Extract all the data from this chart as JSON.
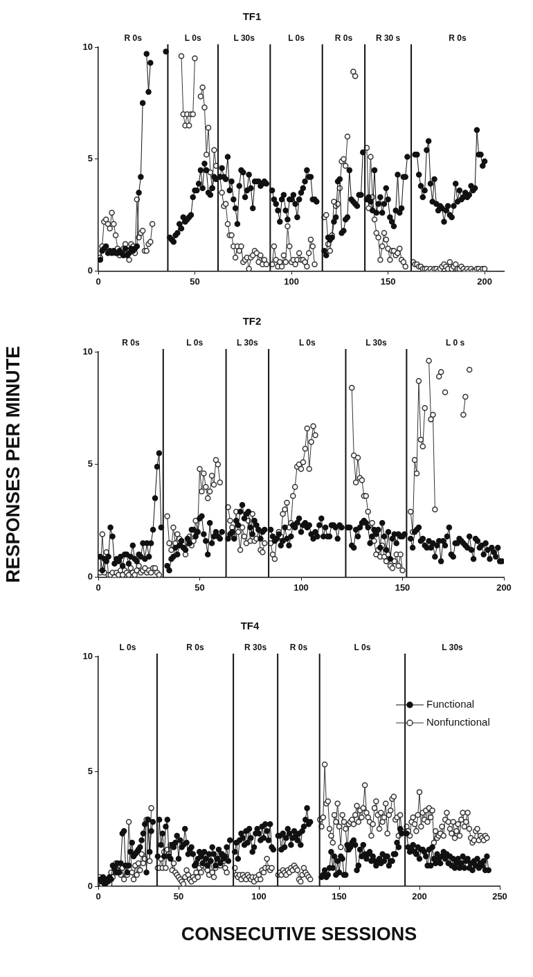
{
  "chart_data": [
    {
      "type": "line",
      "title": "TF1",
      "xlim": [
        0,
        210
      ],
      "xticks": [
        0,
        50,
        100,
        150,
        200
      ],
      "ylim": [
        0,
        10
      ],
      "yticks": [
        0,
        5,
        10
      ],
      "grid": false,
      "legend": false,
      "marker": "circle",
      "x": [
        1,
        2,
        3,
        4,
        5,
        6,
        7,
        8,
        9,
        10,
        11,
        12,
        13,
        14,
        15,
        16,
        17,
        18,
        19,
        20,
        21,
        22,
        23,
        24,
        25,
        26,
        27,
        28,
        29,
        30,
        31,
        32,
        33,
        34,
        35,
        36,
        37,
        38,
        39,
        40,
        41,
        42,
        43,
        44,
        45,
        46,
        47,
        48,
        49,
        50,
        51,
        52,
        53,
        54,
        55,
        56,
        57,
        58,
        59,
        60,
        61,
        62,
        63,
        64,
        65,
        66,
        67,
        68,
        69,
        70,
        71,
        72,
        73,
        74,
        75,
        76,
        77,
        78,
        79,
        80,
        81,
        82,
        83,
        84,
        85,
        86,
        87,
        88,
        89,
        90,
        91,
        92,
        93,
        94,
        95,
        96,
        97,
        98,
        99,
        100,
        101,
        102,
        103,
        104,
        105,
        106,
        107,
        108,
        109,
        110,
        111,
        112,
        113,
        114,
        115,
        116,
        117,
        118,
        119,
        120,
        121,
        122,
        123,
        124,
        125,
        126,
        127,
        128,
        129,
        130,
        131,
        132,
        133,
        134,
        135,
        136,
        137,
        138,
        139,
        140,
        141,
        142,
        143,
        144,
        145,
        146,
        147,
        148,
        149,
        150,
        151,
        152,
        153,
        154,
        155,
        156,
        157,
        158,
        159,
        160,
        161,
        162,
        163,
        164,
        165,
        166,
        167,
        168,
        169,
        170,
        171,
        172,
        173,
        174,
        175,
        176,
        177,
        178,
        179,
        180,
        181,
        182,
        183,
        184,
        185,
        186,
        187,
        188,
        189,
        190,
        191,
        192,
        193,
        194,
        195,
        196,
        197,
        198,
        199,
        200
      ],
      "annotations": [
        "R 0s",
        "L 0s",
        "L 30s",
        "L 0s",
        "R 0s",
        "R 30 s",
        "R 0s"
      ],
      "ref_lines": [
        {
          "axis": "x",
          "value": 36
        },
        {
          "axis": "x",
          "value": 62
        },
        {
          "axis": "x",
          "value": 89
        },
        {
          "axis": "x",
          "value": 116
        },
        {
          "axis": "x",
          "value": 138
        },
        {
          "axis": "x",
          "value": 162
        }
      ],
      "series": [
        {
          "color": "#111111",
          "values": [
            0.5,
            0.9,
            1.0,
            1.1,
            0.8,
            0.9,
            0.8,
            0.9,
            0.8,
            0.8,
            0.9,
            0.8,
            0.7,
            1.0,
            0.7,
            0.8,
            1.0,
            0.9,
            1.0,
            1.1,
            3.5,
            4.2,
            7.5,
            null,
            9.7,
            8.0,
            9.3,
            null,
            null,
            null,
            null,
            null,
            null,
            null,
            9.8,
            null,
            1.5,
            1.4,
            1.3,
            1.6,
            1.7,
            2.1,
            1.9,
            2.4,
            2.2,
            2.3,
            2.4,
            2.5,
            3.3,
            3.6,
            3.6,
            3.9,
            4.5,
            3.7,
            4.8,
            4.5,
            3.5,
            3.4,
            3.7,
            4.2,
            4.1,
            null,
            4.2,
            4.6,
            4.2,
            4.1,
            5.1,
            3.6,
            4.0,
            3.2,
            2.8,
            2.1,
            3.8,
            4.5,
            4.4,
            3.3,
            3.6,
            4.3,
            3.7,
            2.8,
            4.0,
            4.0,
            4.0,
            3.8,
            3.9,
            4.0,
            3.9,
            null,
            null,
            3.6,
            3.2,
            3.0,
            2.7,
            2.2,
            3.2,
            3.4,
            2.7,
            2.3,
            3.2,
            3.2,
            3.4,
            3.0,
            2.4,
            3.2,
            3.5,
            3.7,
            4.0,
            4.5,
            4.2,
            4.2,
            3.2,
            3.2,
            3.1,
            null,
            null,
            null,
            0.9,
            0.7,
            1.5,
            1.4,
            1.5,
            2.2,
            2.4,
            4.0,
            4.1,
            1.7,
            1.8,
            2.3,
            2.4,
            4.5,
            3.2,
            3.1,
            3.0,
            2.9,
            3.4,
            3.4,
            5.3,
            null,
            3.2,
            3.3,
            3.1,
            2.7,
            4.5,
            2.6,
            3.0,
            3.3,
            2.6,
            3.0,
            3.7,
            3.2,
            2.4,
            2.2,
            2.0,
            2.7,
            4.3,
            2.6,
            2.8,
            4.2,
            4.2,
            5.1,
            null,
            null,
            null,
            5.2,
            5.2,
            4.3,
            3.8,
            3.3,
            3.6,
            5.4,
            5.8,
            3.9,
            3.1,
            4.1,
            3.0,
            2.7,
            2.9,
            2.8,
            2.2,
            2.7,
            2.9,
            2.5,
            2.4,
            2.9,
            3.9,
            3.1,
            3.6,
            3.2,
            3.3,
            3.5,
            3.3,
            3.4,
            3.8,
            3.6,
            3.7,
            6.3,
            5.2,
            5.2,
            4.7,
            4.9
          ]
        },
        {
          "color": "#333333",
          "values": [
            0.6,
            1.1,
            2.2,
            2.3,
            2.1,
            1.9,
            2.6,
            2.1,
            1.6,
            1.0,
            0.7,
            0.8,
            1.0,
            1.2,
            0.9,
            0.5,
            1.2,
            1.1,
            0.8,
            3.2,
            1.5,
            1.7,
            1.8,
            0.9,
            0.9,
            1.2,
            1.3,
            2.1,
            null,
            null,
            null,
            null,
            null,
            null,
            null,
            null,
            null,
            null,
            null,
            null,
            null,
            null,
            9.6,
            7.0,
            6.5,
            7.0,
            6.5,
            7.0,
            7.0,
            9.5,
            null,
            null,
            7.8,
            8.2,
            7.3,
            5.2,
            6.4,
            4.4,
            3.7,
            5.4,
            4.7,
            null,
            4.2,
            3.5,
            2.9,
            3.0,
            2.1,
            1.6,
            1.6,
            1.1,
            0.6,
            1.1,
            0.9,
            1.1,
            0.4,
            0.5,
            0.6,
            0.1,
            0.6,
            0.7,
            0.9,
            0.8,
            0.4,
            0.7,
            0.3,
            0.5,
            0.3,
            null,
            null,
            0.3,
            1.1,
            0.5,
            0.2,
            0.4,
            0.2,
            0.7,
            0.4,
            2.0,
            1.1,
            0.4,
            0.5,
            0.3,
            0.5,
            0.8,
            0.5,
            0.5,
            0.4,
            0.2,
            0.8,
            1.4,
            1.1,
            0.3,
            null,
            null,
            null,
            null,
            2.4,
            2.5,
            1.2,
            0.9,
            1.6,
            3.1,
            2.9,
            3.0,
            3.7,
            4.9,
            5.0,
            4.7,
            6.0,
            null,
            null,
            8.9,
            8.7,
            null,
            null,
            null,
            null,
            null,
            5.5,
            2.8,
            5.1,
            3.3,
            2.3,
            1.7,
            1.5,
            0.5,
            1.1,
            1.7,
            1.4,
            1.0,
            0.5,
            0.9,
            0.9,
            0.7,
            0.8,
            1.0,
            0.5,
            0.4,
            0.2,
            null,
            null,
            null,
            0.4,
            0.3,
            0.3,
            0.2,
            0.2,
            0.1,
            0.1,
            0.1,
            0,
            0.1,
            0,
            0.1,
            0.1,
            0,
            0.1,
            0.2,
            0.3,
            0.2,
            0.1,
            0.4,
            0.1,
            0.2,
            0.3,
            0.1,
            0.1,
            0.2,
            0.1,
            0,
            0.1,
            0,
            0.1,
            0,
            0,
            0.1,
            0.1,
            0,
            0.1,
            0.1
          ]
        }
      ]
    },
    {
      "type": "line",
      "title": "TF2",
      "ylabel": "RESPONSES PER MINUTE",
      "xlim": [
        0,
        200
      ],
      "xticks": [
        0,
        50,
        100,
        150,
        200
      ],
      "ylim": [
        0,
        10
      ],
      "yticks": [
        0,
        5,
        10
      ],
      "grid": false,
      "legend": false,
      "marker": "circle",
      "x": [
        1,
        2,
        3,
        4,
        5,
        6,
        7,
        8,
        9,
        10,
        11,
        12,
        13,
        14,
        15,
        16,
        17,
        18,
        19,
        20,
        21,
        22,
        23,
        24,
        25,
        26,
        27,
        28,
        29,
        30,
        31,
        32,
        33,
        34,
        35,
        36,
        37,
        38,
        39,
        40,
        41,
        42,
        43,
        44,
        45,
        46,
        47,
        48,
        49,
        50,
        51,
        52,
        53,
        54,
        55,
        56,
        57,
        58,
        59,
        60,
        61,
        62,
        63,
        64,
        65,
        66,
        67,
        68,
        69,
        70,
        71,
        72,
        73,
        74,
        75,
        76,
        77,
        78,
        79,
        80,
        81,
        82,
        83,
        84,
        85,
        86,
        87,
        88,
        89,
        90,
        91,
        92,
        93,
        94,
        95,
        96,
        97,
        98,
        99,
        100,
        101,
        102,
        103,
        104,
        105,
        106,
        107,
        108,
        109,
        110,
        111,
        112,
        113,
        114,
        115,
        116,
        117,
        118,
        119,
        120,
        121,
        122,
        123,
        124,
        125,
        126,
        127,
        128,
        129,
        130,
        131,
        132,
        133,
        134,
        135,
        136,
        137,
        138,
        139,
        140,
        141,
        142,
        143,
        144,
        145,
        146,
        147,
        148,
        149,
        150,
        151,
        152,
        153,
        154,
        155,
        156,
        157,
        158,
        159,
        160,
        161,
        162,
        163,
        164,
        165,
        166,
        167,
        168,
        169,
        170,
        171,
        172,
        173,
        174,
        175,
        176,
        177,
        178,
        179,
        180,
        181,
        182,
        183,
        184,
        185,
        186,
        187,
        188,
        189,
        190,
        191,
        192,
        193,
        194,
        195,
        196,
        197,
        198,
        199
      ],
      "annotations": [
        "R 0s",
        "L 0s",
        "L 30s",
        "L 0s",
        "L 30s",
        "L 0 s"
      ],
      "ref_lines": [
        {
          "axis": "x",
          "value": 32
        },
        {
          "axis": "x",
          "value": 63
        },
        {
          "axis": "x",
          "value": 84
        },
        {
          "axis": "x",
          "value": 122
        },
        {
          "axis": "x",
          "value": 152
        }
      ],
      "series": [
        {
          "color": "#111111",
          "values": [
            0.9,
            0.3,
            0.8,
            0.7,
            0.9,
            2.2,
            1.8,
            0.6,
            0.8,
            0.7,
            0.9,
            0.5,
            1.0,
            1.0,
            0.6,
            0.9,
            1.4,
            0.8,
            0.7,
            1.0,
            0.9,
            1.5,
            0.8,
            1.5,
            0.9,
            1.5,
            2.1,
            3.5,
            4.9,
            5.5,
            2.2,
            null,
            null,
            0.5,
            0.3,
            0.8,
            0.9,
            1.3,
            1.0,
            1.4,
            1.6,
            1.3,
            1.2,
            1.7,
            1.5,
            2.1,
            2.1,
            1.8,
            2.0,
            2.6,
            2.7,
            1.9,
            1.6,
            1.0,
            2.4,
            1.5,
            1.8,
            2.0,
            1.8,
            1.7,
            2.0,
            null,
            null,
            1.7,
            1.9,
            2.0,
            1.7,
            2.5,
            2.3,
            2.9,
            3.2,
            2.6,
            2.8,
            2.9,
            2.2,
            1.9,
            2.5,
            2.3,
            2.1,
            1.7,
            2.0,
            2.1,
            null,
            null,
            2.1,
            1.8,
            1.6,
            1.7,
            1.9,
            1.4,
            1.6,
            2.2,
            1.7,
            1.4,
            1.8,
            2.3,
            2.2,
            2.4,
            2.6,
            2.0,
            2.3,
            2.4,
            2.2,
            2.3,
            1.9,
            1.7,
            2.0,
            1.8,
            2.3,
            2.6,
            1.8,
            2.2,
            1.8,
            1.8,
            2.3,
            2.3,
            2.2,
            1.7,
            2.3,
            2.2,
            null,
            null,
            2.2,
            2.2,
            1.4,
            1.3,
            2.1,
            1.8,
            2.2,
            2.4,
            2.5,
            2.4,
            2.2,
            1.5,
            1.8,
            2.1,
            1.9,
            2.1,
            1.3,
            2.4,
            1.8,
            1.2,
            2.0,
            0.8,
            1.7,
            1.9,
            1.5,
            1.9,
            1.8,
            1.8,
            1.9,
            null,
            null,
            1.7,
            1.3,
            2.0,
            2.1,
            2.2,
            1.6,
            1.7,
            1.4,
            1.3,
            1.6,
            1.3,
            1.5,
            0.9,
            1.4,
            1.6,
            0.7,
            1.6,
            1.4,
            1.8,
            2.2,
            1.0,
            0.9,
            1.5,
            1.5,
            1.7,
            1.6,
            1.5,
            1.4,
            1.3,
            1.8,
            1.2,
            0.8,
            1.7,
            1.6,
            1.3,
            1.4,
            1.0,
            1.5,
            1.2,
            0.8,
            1.3,
            1.1,
            0.9,
            1.3,
            0.7,
            0.7
          ]
        },
        {
          "color": "#333333",
          "values": [
            0.2,
            1.9,
            0.2,
            1.1,
            0.1,
            0.1,
            0.2,
            0,
            0.2,
            0.1,
            0.3,
            0.1,
            0.3,
            0.2,
            0.1,
            0.4,
            0.2,
            0.1,
            0.3,
            0.5,
            0.2,
            0.3,
            0.4,
            0.2,
            0.3,
            0.2,
            0.4,
            0.4,
            0.2,
            0.1,
            null,
            null,
            null,
            2.7,
            1.5,
            1.2,
            2.2,
            1.5,
            1.9,
            1.7,
            1.6,
            1.3,
            1.0,
            1.5,
            1.8,
            1.4,
            1.6,
            2.5,
            2.0,
            4.8,
            3.8,
            4.6,
            4.0,
            3.5,
            3.8,
            4.5,
            4.1,
            5.2,
            5.0,
            4.2,
            null,
            null,
            null,
            3.1,
            2.5,
            2.2,
            1.8,
            2.9,
            2.0,
            1.2,
            2.2,
            1.8,
            1.5,
            2.5,
            1.6,
            2.8,
            1.6,
            1.7,
            2.1,
            1.2,
            1.1,
            1.5,
            null,
            null,
            1.5,
            1.0,
            0.8,
            1.7,
            2.0,
            1.8,
            2.8,
            3.0,
            3.3,
            2.2,
            2.4,
            3.6,
            4.0,
            4.9,
            5.0,
            4.8,
            5.1,
            5.7,
            6.6,
            4.8,
            6.0,
            6.7,
            6.3,
            null,
            null,
            null,
            null,
            null,
            null,
            null,
            null,
            null,
            null,
            null,
            null,
            null,
            null,
            null,
            null,
            null,
            8.4,
            5.4,
            4.2,
            5.3,
            4.4,
            4.3,
            3.6,
            3.6,
            2.9,
            2.3,
            2.4,
            1.6,
            1.0,
            1.2,
            0.9,
            1.4,
            0.9,
            0.7,
            1.0,
            0.5,
            0.4,
            0.7,
            1.0,
            0.5,
            1.0,
            0.3,
            null,
            null,
            null,
            2.9,
            2.0,
            5.2,
            4.6,
            8.7,
            6.1,
            5.8,
            7.5,
            null,
            9.6,
            7.0,
            7.2,
            3.0,
            null,
            8.9,
            9.1,
            null,
            8.2,
            null,
            null,
            null,
            null,
            null,
            null,
            null,
            null,
            7.2,
            8.0,
            null,
            9.2,
            null,
            null,
            null,
            null,
            null,
            null,
            null,
            null,
            null,
            null,
            null,
            null,
            null,
            null,
            null,
            null
          ]
        }
      ]
    },
    {
      "type": "line",
      "title": "TF4",
      "xlabel": "CONSECUTIVE SESSIONS",
      "xlim": [
        0,
        250
      ],
      "xticks": [
        0,
        50,
        100,
        150,
        200,
        250
      ],
      "ylim": [
        0,
        10
      ],
      "yticks": [
        0,
        5,
        10
      ],
      "grid": false,
      "legend": "top right",
      "marker": "circle",
      "x": [
        1,
        2,
        3,
        4,
        5,
        6,
        7,
        8,
        9,
        10,
        11,
        12,
        13,
        14,
        15,
        16,
        17,
        18,
        19,
        20,
        21,
        22,
        23,
        24,
        25,
        26,
        27,
        28,
        29,
        30,
        31,
        32,
        33,
        34,
        35,
        36,
        37,
        38,
        39,
        40,
        41,
        42,
        43,
        44,
        45,
        46,
        47,
        48,
        49,
        50,
        51,
        52,
        53,
        54,
        55,
        56,
        57,
        58,
        59,
        60,
        61,
        62,
        63,
        64,
        65,
        66,
        67,
        68,
        69,
        70,
        71,
        72,
        73,
        74,
        75,
        76,
        77,
        78,
        79,
        80,
        81,
        82,
        83,
        84,
        85,
        86,
        87,
        88,
        89,
        90,
        91,
        92,
        93,
        94,
        95,
        96,
        97,
        98,
        99,
        100,
        101,
        102,
        103,
        104,
        105,
        106,
        107,
        108,
        109,
        110,
        111,
        112,
        113,
        114,
        115,
        116,
        117,
        118,
        119,
        120,
        121,
        122,
        123,
        124,
        125,
        126,
        127,
        128,
        129,
        130,
        131,
        132,
        133,
        134,
        135,
        136,
        137,
        138,
        139,
        140,
        141,
        142,
        143,
        144,
        145,
        146,
        147,
        148,
        149,
        150,
        151,
        152,
        153,
        154,
        155,
        156,
        157,
        158,
        159,
        160,
        161,
        162,
        163,
        164,
        165,
        166,
        167,
        168,
        169,
        170,
        171,
        172,
        173,
        174,
        175,
        176,
        177,
        178,
        179,
        180,
        181,
        182,
        183,
        184,
        185,
        186,
        187,
        188,
        189,
        190,
        191,
        192,
        193,
        194,
        195,
        196,
        197,
        198,
        199,
        200,
        201,
        202,
        203,
        204,
        205,
        206,
        207,
        208,
        209,
        210,
        211,
        212,
        213,
        214,
        215,
        216,
        217,
        218,
        219,
        220,
        221,
        222,
        223,
        224,
        225,
        226,
        227,
        228,
        229,
        230,
        231,
        232,
        233,
        234,
        235,
        236,
        237,
        238,
        239,
        240,
        241,
        242,
        243
      ],
      "annotations": [
        "L 0s",
        "R 0s",
        "R 30s",
        "R 0s",
        "L 0s",
        "L 30s"
      ],
      "ref_lines": [
        {
          "axis": "x",
          "value": 36.6
        },
        {
          "axis": "x",
          "value": 84.1
        },
        {
          "axis": "x",
          "value": 111.7
        },
        {
          "axis": "x",
          "value": 137.8
        },
        {
          "axis": "x",
          "value": 191
        }
      ],
      "series": [
        {
          "name": "Functional",
          "color": "#111111",
          "values": [
            0.3,
            0.2,
            0.4,
            0.1,
            0.3,
            0.2,
            0.4,
            0.3,
            0.9,
            0.8,
            0.6,
            1.0,
            0.6,
            1.0,
            2.3,
            2.4,
            0.9,
            0.6,
            0.9,
            1.5,
            1.9,
            1.3,
            1.4,
            1.5,
            1.6,
            1.7,
            2.0,
            2.3,
            2.7,
            0.6,
            2.9,
            1.5,
            2.4,
            2.8,
            null,
            null,
            1.3,
            2.9,
            1.8,
            2.3,
            1.3,
            2.6,
            2.9,
            1.3,
            1.2,
            1.8,
            1.7,
            1.9,
            2.2,
            1.2,
            2.0,
            1.7,
            1.8,
            2.5,
            1.9,
            1.4,
            1.6,
            1.7,
            1.4,
            0.9,
            1.0,
            1.2,
            1.5,
            1.3,
            1.0,
            1.5,
            1.2,
            0.9,
            1.4,
            1.1,
            1.7,
            1.4,
            0.9,
            1.2,
            1.6,
            1.0,
            1.4,
            1.2,
            1.3,
            1.7,
            1.1,
            2.0,
            null,
            null,
            1.5,
            1.9,
            1.2,
            2.0,
            2.3,
            2.1,
            1.8,
            2.4,
            1.9,
            2.5,
            2.1,
            1.5,
            1.7,
            2.3,
            2.5,
            2.3,
            2.0,
            2.6,
            2.1,
            2.7,
            2.4,
            2.0,
            2.7,
            1.7,
            1.6,
            null,
            null,
            2.2,
            2.2,
            1.6,
            2.3,
            1.7,
            2.1,
            2.5,
            2.3,
            1.8,
            2.1,
            2.4,
            2.2,
            2.0,
            2.3,
            1.8,
            2.4,
            2.6,
            2.9,
            3.4,
            2.7,
            2.8,
            null,
            null,
            null,
            null,
            null,
            null,
            0.4,
            0.5,
            0.7,
            0.4,
            0.5,
            0.8,
            1.5,
            0.8,
            1.3,
            0.5,
            1.1,
            0.6,
            1.3,
            1.2,
            0.5,
            0.5,
            1.8,
            1.6,
            1.7,
            1.9,
            2.0,
            1.8,
            0.7,
            0.9,
            1.6,
            1.3,
            1.8,
            1.4,
            1.2,
            1.4,
            1.5,
            1.1,
            1.3,
            1.1,
            0.9,
            1.1,
            1.2,
            1.0,
            1.4,
            1.1,
            1.3,
            1.3,
            0.9,
            1.1,
            1.1,
            1.4,
            1.4,
            1.9,
            1.7,
            2.5,
            2.3,
            null,
            null,
            2.3,
            1.7,
            1.5,
            1.6,
            1.8,
            1.5,
            1.4,
            1.7,
            1.2,
            1.6,
            1.6,
            1.5,
            1.3,
            0.9,
            1.6,
            0.9,
            1.7,
            1.2,
            1.0,
            1.4,
            1.2,
            1.0,
            1.3,
            1.5,
            1.2,
            1.4,
            1.0,
            1.3,
            0.9,
            1.2,
            0.8,
            1.0,
            1.2,
            0.8,
            1.0,
            1.3,
            0.8,
            1.1,
            1.2,
            0.8,
            1.0,
            0.7,
            1.1,
            0.9,
            1.2,
            0.8,
            1.0,
            0.9,
            1.1,
            0.7,
            1.3,
            0.7
          ]
        },
        {
          "name": "Nonfunctional",
          "color": "#333333",
          "values": [
            0.4,
            0.1,
            0.3,
            0,
            0.2,
            0.3,
            0.1,
            0.6,
            0.4,
            0.8,
            1.0,
            0.6,
            0.9,
            0.5,
            0.8,
            0.3,
            0.9,
            0.5,
            2.8,
            1.5,
            0.6,
            0.3,
            0.9,
            0.5,
            1.0,
            0.7,
            1.4,
            1.0,
            1.2,
            2.9,
            2.9,
            1.1,
            3.4,
            null,
            null,
            null,
            0.8,
            0.8,
            1.2,
            0.8,
            1.5,
            0.8,
            1.6,
            1.4,
            1.8,
            0.7,
            1.0,
            0.6,
            0.5,
            0.4,
            0.3,
            0.2,
            0.1,
            0.4,
            0.7,
            0.5,
            0.3,
            0.2,
            0.4,
            0.3,
            0.6,
            0.4,
            0.8,
            0.6,
            0.9,
            1.0,
            0.8,
            0.7,
            0.5,
            1.1,
            0.6,
            0.4,
            0.8,
            1.0,
            1.2,
            0.9,
            1.4,
            1.1,
            0.8,
            0.6,
            null,
            null,
            null,
            null,
            0.8,
            0.5,
            0.4,
            0.5,
            0.3,
            0.5,
            0.4,
            0.3,
            0.5,
            0.4,
            0.3,
            0.4,
            0.2,
            0.4,
            0.3,
            0.5,
            0.3,
            0.7,
            0.6,
            0.8,
            1.2,
            0.8,
            0.7,
            0.8,
            null,
            null,
            null,
            0.5,
            0.6,
            0.5,
            0.7,
            0.6,
            0.5,
            0.7,
            0.6,
            0.8,
            0.7,
            0.9,
            0.8,
            0.7,
            0.3,
            0.2,
            0.5,
            0.8,
            0.6,
            0.5,
            0.4,
            0.3,
            null,
            null,
            null,
            null,
            null,
            2.9,
            2.6,
            3.0,
            5.3,
            3.6,
            3.7,
            2.5,
            2.2,
            1.9,
            3.1,
            2.8,
            3.6,
            2.6,
            1.7,
            3.1,
            2.8,
            2.5,
            1.6,
            2.7,
            2.8,
            2.9,
            2.7,
            3.1,
            3.5,
            2.8,
            3.3,
            3.0,
            3.4,
            4.4,
            3.2,
            3.0,
            2.8,
            2.2,
            2.7,
            3.4,
            3.7,
            3.1,
            2.5,
            3.2,
            2.8,
            3.0,
            3.6,
            2.3,
            3.1,
            3.3,
            3.8,
            3.9,
            2.9,
            3.0,
            2.2,
            3.1,
            2.4,
            null,
            null,
            2.6,
            2.4,
            2.2,
            2.8,
            3.0,
            2.7,
            2.4,
            3.1,
            4.1,
            2.6,
            3.2,
            2.9,
            3.3,
            2.8,
            3.4,
            3.0,
            3.3,
            1.9,
            2.4,
            2.1,
            2.2,
            2.3,
            2.6,
            2.2,
            2.9,
            3.2,
            2.8,
            2.5,
            2.3,
            2.8,
            2.1,
            2.4,
            2.7,
            2.2,
            2.9,
            3.2,
            2.6,
            2.8,
            3.2,
            2.5,
            2.1,
            1.9,
            2.0,
            2.4,
            2.5,
            2.0,
            2.2,
            2.1,
            2.0,
            2.2,
            2.1,
            null
          ]
        }
      ]
    }
  ]
}
